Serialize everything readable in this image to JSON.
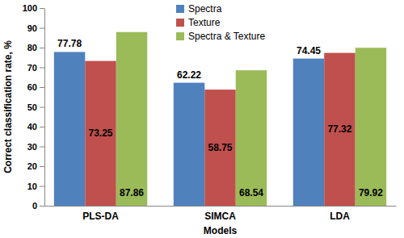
{
  "chart_data": {
    "type": "bar",
    "categories": [
      "PLS-DA",
      "SIMCA",
      "LDA"
    ],
    "series": [
      {
        "name": "Spectra",
        "color": "#4f81bd",
        "values": [
          77.78,
          62.22,
          74.45
        ]
      },
      {
        "name": "Texture",
        "color": "#c0504d",
        "values": [
          73.25,
          58.75,
          77.32
        ]
      },
      {
        "name": "Spectra & Texture",
        "color": "#9bbb59",
        "values": [
          87.86,
          68.54,
          79.92
        ]
      }
    ],
    "x_label": "Models",
    "y_label": "Correct classification rate, %",
    "ylim": [
      0,
      100
    ],
    "yticks": [
      0,
      10,
      20,
      30,
      40,
      50,
      60,
      70,
      80,
      90,
      100
    ],
    "grid": false,
    "legend": "top",
    "data_labels": true
  }
}
